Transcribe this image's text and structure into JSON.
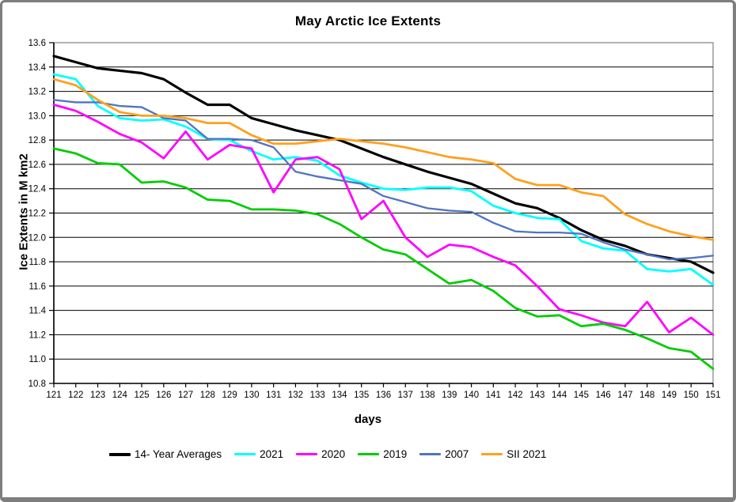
{
  "window": {
    "title": "May Arctic Ice Extents"
  },
  "chart_data": {
    "type": "line",
    "title": "May Arctic Ice Extents",
    "xlabel": "days",
    "ylabel": "Ice Extents in M km2",
    "ylim": [
      10.8,
      13.6
    ],
    "ytick_step": 0.2,
    "grid": "horizontal-black-gridlines",
    "legend_position": "bottom",
    "x": [
      121,
      122,
      123,
      124,
      125,
      126,
      127,
      128,
      129,
      130,
      131,
      132,
      133,
      134,
      135,
      136,
      137,
      138,
      139,
      140,
      141,
      142,
      143,
      144,
      145,
      146,
      147,
      148,
      149,
      150,
      151
    ],
    "series": [
      {
        "name": "14- Year Averages",
        "color": "#000000",
        "width": 3.2,
        "values": [
          13.49,
          13.44,
          13.39,
          13.37,
          13.35,
          13.3,
          13.19,
          13.09,
          13.09,
          12.98,
          12.93,
          12.88,
          12.84,
          12.8,
          12.73,
          12.66,
          12.6,
          12.54,
          12.49,
          12.44,
          12.36,
          12.28,
          12.24,
          12.16,
          12.06,
          11.98,
          11.93,
          11.86,
          11.83,
          11.8,
          11.71
        ]
      },
      {
        "name": "2021",
        "color": "#00FFFF",
        "width": 2.8,
        "values": [
          13.34,
          13.3,
          13.08,
          12.98,
          12.96,
          12.97,
          12.91,
          12.81,
          12.8,
          12.71,
          12.64,
          12.66,
          12.63,
          12.51,
          12.45,
          12.4,
          12.39,
          12.41,
          12.41,
          12.38,
          12.26,
          12.2,
          12.16,
          12.15,
          11.97,
          11.91,
          11.89,
          11.74,
          11.72,
          11.74,
          11.61
        ]
      },
      {
        "name": "2020",
        "color": "#FF00FF",
        "width": 2.8,
        "values": [
          13.09,
          13.04,
          12.95,
          12.85,
          12.78,
          12.65,
          12.87,
          12.64,
          12.76,
          12.73,
          12.37,
          12.64,
          12.66,
          12.56,
          12.15,
          12.3,
          12.0,
          11.84,
          11.94,
          11.92,
          11.84,
          11.77,
          11.6,
          11.41,
          11.36,
          11.3,
          11.27,
          11.47,
          11.22,
          11.34,
          11.2
        ]
      },
      {
        "name": "2019",
        "color": "#00CC00",
        "width": 2.8,
        "values": [
          12.73,
          12.69,
          12.61,
          12.6,
          12.45,
          12.46,
          12.41,
          12.31,
          12.3,
          12.23,
          12.23,
          12.22,
          12.19,
          12.11,
          12.0,
          11.9,
          11.86,
          11.74,
          11.62,
          11.65,
          11.56,
          11.42,
          11.35,
          11.36,
          11.27,
          11.29,
          11.24,
          11.17,
          11.09,
          11.06,
          10.92
        ]
      },
      {
        "name": "2007",
        "color": "#4F74C2",
        "width": 2.3,
        "values": [
          13.13,
          13.11,
          13.11,
          13.08,
          13.07,
          12.98,
          12.96,
          12.81,
          12.81,
          12.8,
          12.74,
          12.54,
          12.5,
          12.47,
          12.44,
          12.34,
          12.29,
          12.24,
          12.22,
          12.21,
          12.12,
          12.05,
          12.04,
          12.04,
          12.03,
          11.96,
          11.9,
          11.86,
          11.82,
          11.83,
          11.85
        ]
      },
      {
        "name": "SII 2021",
        "color": "#FFA01E",
        "width": 2.8,
        "values": [
          13.3,
          13.25,
          13.13,
          13.03,
          13.0,
          13.0,
          12.98,
          12.94,
          12.94,
          12.84,
          12.77,
          12.77,
          12.79,
          12.81,
          12.79,
          12.77,
          12.74,
          12.7,
          12.66,
          12.64,
          12.61,
          12.48,
          12.43,
          12.43,
          12.37,
          12.34,
          12.19,
          12.11,
          12.05,
          12.01,
          11.98
        ]
      }
    ],
    "colors": {
      "background": "#FFFFFF",
      "gridline": "#000000",
      "axis": "#000000",
      "plot_border": "#808080",
      "outer_border": "#7E7E7E",
      "text": "#000000"
    }
  }
}
